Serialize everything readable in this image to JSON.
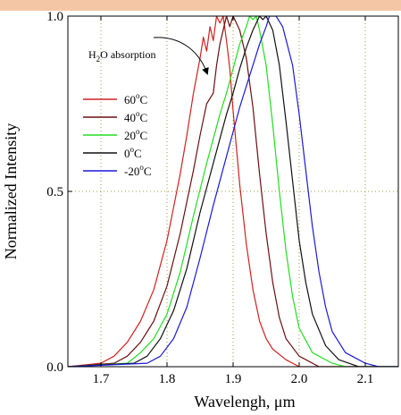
{
  "chart_data": {
    "type": "line",
    "title": "",
    "xlabel": "Wavelengh, μm",
    "ylabel": "Normalized Intensity",
    "xlim": [
      1.65,
      2.15
    ],
    "ylim": [
      0.0,
      1.0
    ],
    "xticks": [
      "1.7",
      "1.8",
      "1.9",
      "2.0",
      "2.1"
    ],
    "yticks": [
      "0.0",
      "0.5",
      "1.0"
    ],
    "grid": true,
    "legend_position": "left",
    "annotation": {
      "text_main": "H",
      "text_sub": "2",
      "text_rest": "O absorption"
    },
    "series": [
      {
        "name": "60°C",
        "label_num": "60",
        "label_sup": "o",
        "label_unit": "C",
        "color": "#d42020",
        "points": [
          [
            1.65,
            0.0
          ],
          [
            1.7,
            0.01
          ],
          [
            1.72,
            0.03
          ],
          [
            1.74,
            0.07
          ],
          [
            1.76,
            0.13
          ],
          [
            1.78,
            0.22
          ],
          [
            1.8,
            0.36
          ],
          [
            1.82,
            0.55
          ],
          [
            1.83,
            0.66
          ],
          [
            1.84,
            0.78
          ],
          [
            1.85,
            0.88
          ],
          [
            1.855,
            0.94
          ],
          [
            1.86,
            0.9
          ],
          [
            1.865,
            0.97
          ],
          [
            1.87,
            0.93
          ],
          [
            1.875,
            1.0
          ],
          [
            1.88,
            0.98
          ],
          [
            1.885,
            1.0
          ],
          [
            1.89,
            0.93
          ],
          [
            1.895,
            0.85
          ],
          [
            1.9,
            0.73
          ],
          [
            1.91,
            0.52
          ],
          [
            1.92,
            0.35
          ],
          [
            1.93,
            0.22
          ],
          [
            1.94,
            0.13
          ],
          [
            1.95,
            0.08
          ],
          [
            1.96,
            0.05
          ],
          [
            1.98,
            0.02
          ],
          [
            2.0,
            0.0
          ],
          [
            2.15,
            0.0
          ]
        ]
      },
      {
        "name": "40°C",
        "label_num": "40",
        "label_sup": "o",
        "label_unit": "C",
        "color": "#6a1010",
        "points": [
          [
            1.65,
            0.0
          ],
          [
            1.72,
            0.01
          ],
          [
            1.74,
            0.03
          ],
          [
            1.76,
            0.07
          ],
          [
            1.78,
            0.13
          ],
          [
            1.8,
            0.23
          ],
          [
            1.82,
            0.38
          ],
          [
            1.84,
            0.56
          ],
          [
            1.85,
            0.66
          ],
          [
            1.86,
            0.75
          ],
          [
            1.87,
            0.78
          ],
          [
            1.875,
            0.86
          ],
          [
            1.88,
            0.92
          ],
          [
            1.885,
            0.96
          ],
          [
            1.89,
            1.0
          ],
          [
            1.895,
            0.97
          ],
          [
            1.9,
            1.0
          ],
          [
            1.905,
            0.98
          ],
          [
            1.91,
            0.96
          ],
          [
            1.92,
            0.88
          ],
          [
            1.93,
            0.74
          ],
          [
            1.94,
            0.55
          ],
          [
            1.95,
            0.38
          ],
          [
            1.96,
            0.24
          ],
          [
            1.97,
            0.14
          ],
          [
            1.98,
            0.08
          ],
          [
            2.0,
            0.03
          ],
          [
            2.03,
            0.0
          ],
          [
            2.15,
            0.0
          ]
        ]
      },
      {
        "name": "20°C",
        "label_num": "20",
        "label_sup": "o",
        "label_unit": "C",
        "color": "#22dd22",
        "points": [
          [
            1.65,
            0.0
          ],
          [
            1.74,
            0.01
          ],
          [
            1.76,
            0.04
          ],
          [
            1.78,
            0.08
          ],
          [
            1.8,
            0.15
          ],
          [
            1.82,
            0.27
          ],
          [
            1.84,
            0.43
          ],
          [
            1.86,
            0.58
          ],
          [
            1.87,
            0.65
          ],
          [
            1.88,
            0.72
          ],
          [
            1.89,
            0.78
          ],
          [
            1.9,
            0.85
          ],
          [
            1.91,
            0.92
          ],
          [
            1.92,
            0.97
          ],
          [
            1.925,
            1.0
          ],
          [
            1.93,
            0.99
          ],
          [
            1.935,
            1.0
          ],
          [
            1.94,
            0.96
          ],
          [
            1.95,
            0.86
          ],
          [
            1.96,
            0.69
          ],
          [
            1.97,
            0.5
          ],
          [
            1.98,
            0.33
          ],
          [
            1.99,
            0.2
          ],
          [
            2.0,
            0.11
          ],
          [
            2.02,
            0.04
          ],
          [
            2.05,
            0.01
          ],
          [
            2.07,
            0.0
          ],
          [
            2.15,
            0.0
          ]
        ]
      },
      {
        "name": "0°C",
        "label_num": "0",
        "label_sup": "o",
        "label_unit": "C",
        "color": "#111111",
        "points": [
          [
            1.65,
            0.0
          ],
          [
            1.75,
            0.01
          ],
          [
            1.77,
            0.03
          ],
          [
            1.79,
            0.08
          ],
          [
            1.81,
            0.16
          ],
          [
            1.83,
            0.28
          ],
          [
            1.85,
            0.44
          ],
          [
            1.87,
            0.58
          ],
          [
            1.88,
            0.65
          ],
          [
            1.89,
            0.72
          ],
          [
            1.9,
            0.78
          ],
          [
            1.91,
            0.85
          ],
          [
            1.92,
            0.91
          ],
          [
            1.93,
            0.96
          ],
          [
            1.94,
            1.0
          ],
          [
            1.945,
            0.99
          ],
          [
            1.95,
            1.0
          ],
          [
            1.96,
            0.96
          ],
          [
            1.97,
            0.86
          ],
          [
            1.98,
            0.7
          ],
          [
            1.99,
            0.53
          ],
          [
            2.0,
            0.36
          ],
          [
            2.01,
            0.24
          ],
          [
            2.02,
            0.15
          ],
          [
            2.04,
            0.06
          ],
          [
            2.06,
            0.02
          ],
          [
            2.09,
            0.0
          ],
          [
            2.15,
            0.0
          ]
        ]
      },
      {
        "name": "-20°C",
        "label_num": "-20",
        "label_sup": "o",
        "label_unit": "C",
        "color": "#1a1ad8",
        "points": [
          [
            1.65,
            0.0
          ],
          [
            1.77,
            0.01
          ],
          [
            1.79,
            0.03
          ],
          [
            1.81,
            0.08
          ],
          [
            1.83,
            0.17
          ],
          [
            1.85,
            0.31
          ],
          [
            1.87,
            0.46
          ],
          [
            1.89,
            0.6
          ],
          [
            1.9,
            0.67
          ],
          [
            1.91,
            0.74
          ],
          [
            1.92,
            0.8
          ],
          [
            1.93,
            0.86
          ],
          [
            1.94,
            0.92
          ],
          [
            1.95,
            0.97
          ],
          [
            1.955,
            1.0
          ],
          [
            1.965,
            1.0
          ],
          [
            1.975,
            0.97
          ],
          [
            1.99,
            0.86
          ],
          [
            2.0,
            0.72
          ],
          [
            2.01,
            0.56
          ],
          [
            2.02,
            0.4
          ],
          [
            2.03,
            0.27
          ],
          [
            2.04,
            0.17
          ],
          [
            2.05,
            0.1
          ],
          [
            2.07,
            0.04
          ],
          [
            2.09,
            0.02
          ],
          [
            2.1,
            0.01
          ],
          [
            2.12,
            0.0
          ],
          [
            2.15,
            0.0
          ]
        ]
      }
    ]
  }
}
